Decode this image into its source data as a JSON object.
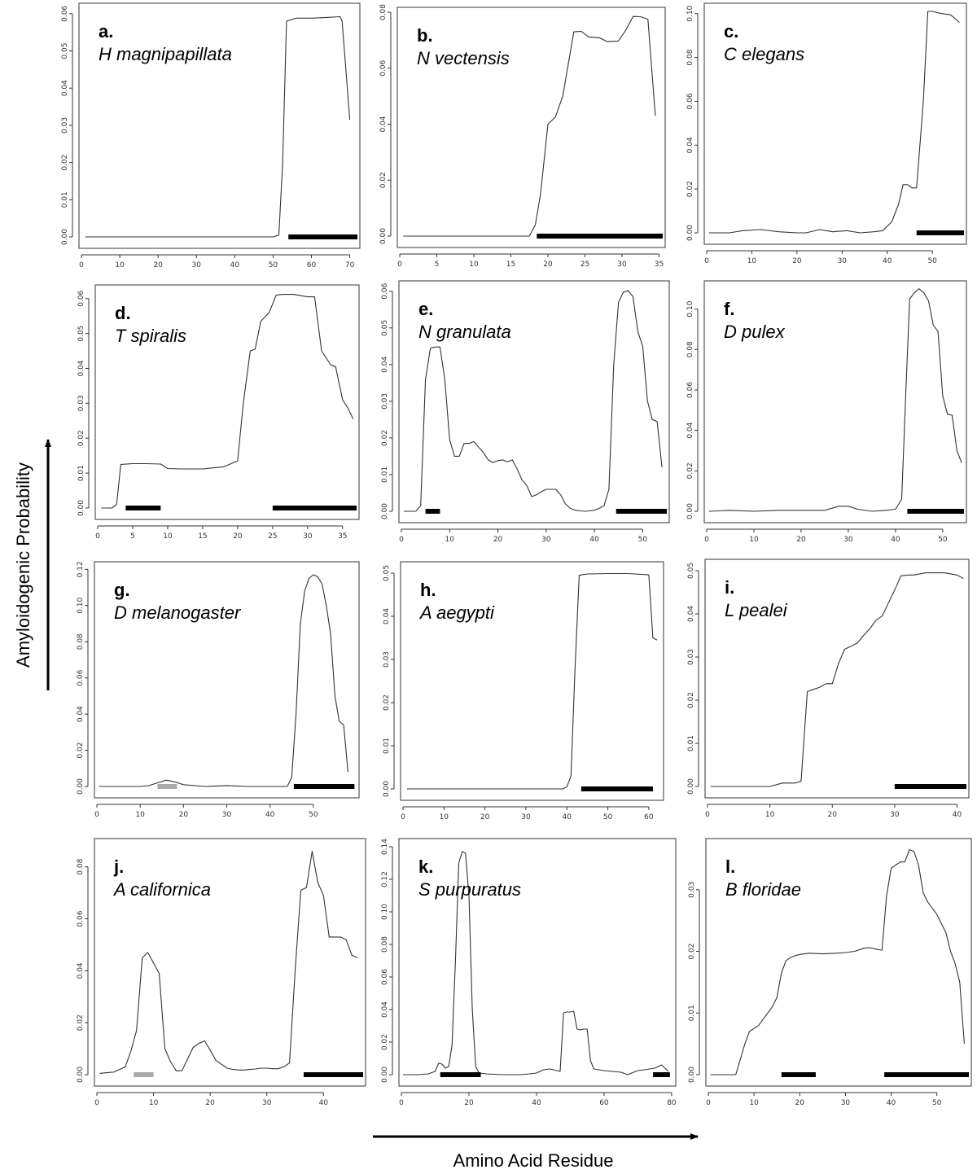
{
  "figure": {
    "y_axis_label": "Amyloidogenic Probability",
    "x_axis_label": "Amino Acid Residue"
  },
  "colors": {
    "line": "#333333",
    "bar_dark": "#000000",
    "bar_light": "#aaaaaa"
  },
  "chart_data": [
    {
      "type": "line",
      "panel": "a.",
      "species": "H magnipapillata",
      "xlim": [
        0,
        72
      ],
      "xticks": [
        0,
        10,
        20,
        30,
        40,
        50,
        60,
        70
      ],
      "ylim": [
        0,
        0.0615
      ],
      "yticks": [
        "0.00",
        "0.01",
        "0.02",
        "0.03",
        "0.04",
        "0.05",
        "0.06"
      ],
      "x": [
        1,
        10,
        20,
        30,
        40,
        50,
        51.5,
        52.5,
        53.5,
        56,
        60,
        64,
        67.5,
        68,
        70
      ],
      "y": [
        0,
        0,
        0,
        0,
        0,
        0,
        0.0005,
        0.02,
        0.058,
        0.0588,
        0.0588,
        0.059,
        0.0592,
        0.058,
        0.0315
      ],
      "segments": [
        {
          "start": 54,
          "end": 72,
          "tone": "dark"
        }
      ]
    },
    {
      "type": "line",
      "panel": "b.",
      "species": "N vectensis",
      "xlim": [
        0,
        35.5
      ],
      "xticks": [
        0,
        5,
        10,
        15,
        20,
        25,
        30,
        35
      ],
      "ylim": [
        0,
        0.08
      ],
      "yticks": [
        "0.00",
        "0.02",
        "0.04",
        "0.06",
        "0.08"
      ],
      "x": [
        0.5,
        5,
        10,
        15,
        17.5,
        18.3,
        19,
        20,
        21,
        22,
        23.5,
        24.5,
        25.5,
        27,
        28,
        29.5,
        30.5,
        31.5,
        32.5,
        33.5,
        34.5
      ],
      "y": [
        0,
        0,
        0,
        0,
        0,
        0.004,
        0.015,
        0.04,
        0.0425,
        0.05,
        0.073,
        0.0732,
        0.0712,
        0.0708,
        0.0695,
        0.0697,
        0.0735,
        0.0785,
        0.0784,
        0.0775,
        0.043
      ],
      "segments": [
        {
          "start": 18.5,
          "end": 35.5,
          "tone": "dark"
        }
      ]
    },
    {
      "type": "line",
      "panel": "c.",
      "species": "C elegans",
      "xlim": [
        0,
        57
      ],
      "xticks": [
        0,
        10,
        20,
        30,
        40,
        50
      ],
      "ylim": [
        0,
        0.1025
      ],
      "yticks": [
        "0.00",
        "0.02",
        "0.04",
        "0.06",
        "0.08",
        "0.10"
      ],
      "x": [
        0.5,
        5,
        8,
        12,
        16,
        20,
        22,
        25,
        28,
        31,
        34,
        37,
        39,
        41,
        42.5,
        43.5,
        44.5,
        45.5,
        46.5,
        48,
        49,
        50,
        52,
        54,
        56
      ],
      "y": [
        0,
        0,
        0.001,
        0.0015,
        0.0005,
        0,
        0,
        0.0015,
        0.0005,
        0.001,
        0,
        0.0005,
        0.001,
        0.005,
        0.013,
        0.022,
        0.022,
        0.0205,
        0.0205,
        0.06,
        0.101,
        0.101,
        0.1,
        0.0995,
        0.096
      ],
      "segments": [
        {
          "start": 46.5,
          "end": 57,
          "tone": "dark"
        }
      ]
    },
    {
      "type": "line",
      "panel": "d.",
      "species": "T spiralis",
      "xlim": [
        0,
        37
      ],
      "xticks": [
        0,
        5,
        10,
        15,
        20,
        25,
        30,
        35
      ],
      "ylim": [
        0,
        0.0625
      ],
      "yticks": [
        "0.00",
        "0.01",
        "0.02",
        "0.03",
        "0.04",
        "0.05",
        "0.06"
      ],
      "x": [
        0.5,
        2,
        2.7,
        3.3,
        5,
        7,
        9,
        10,
        12,
        15,
        18,
        20,
        20.8,
        21.8,
        22.5,
        23.3,
        24.5,
        25.5,
        26.5,
        28,
        30,
        31,
        32,
        33.3,
        34,
        35,
        35.8,
        36.5
      ],
      "y": [
        0,
        0,
        0.001,
        0.0125,
        0.0127,
        0.0127,
        0.0126,
        0.0113,
        0.0112,
        0.0112,
        0.0118,
        0.0135,
        0.03,
        0.045,
        0.0455,
        0.0535,
        0.056,
        0.061,
        0.0612,
        0.0612,
        0.0605,
        0.0605,
        0.045,
        0.041,
        0.0405,
        0.031,
        0.0285,
        0.0255
      ],
      "segments": [
        {
          "start": 4,
          "end": 9,
          "tone": "dark"
        },
        {
          "start": 25,
          "end": 37,
          "tone": "dark"
        }
      ]
    },
    {
      "type": "line",
      "panel": "e.",
      "species": "N granulata",
      "xlim": [
        0,
        55
      ],
      "xticks": [
        0,
        10,
        20,
        30,
        40,
        50
      ],
      "ylim": [
        0,
        0.0615
      ],
      "yticks": [
        "0.00",
        "0.01",
        "0.02",
        "0.03",
        "0.04",
        "0.05",
        "0.06"
      ],
      "x": [
        0.5,
        3,
        4,
        5,
        6,
        7,
        8,
        9,
        10,
        11,
        12,
        13,
        14,
        15,
        16,
        17,
        18,
        19,
        20,
        21,
        22,
        23,
        24,
        25,
        26,
        27,
        28,
        29,
        30,
        31,
        32,
        33,
        34,
        35,
        36,
        37,
        38,
        39,
        40,
        41,
        42,
        43,
        44,
        45,
        46,
        47,
        48,
        49,
        50,
        51,
        52,
        53,
        54
      ],
      "y": [
        0,
        0,
        0.0015,
        0.036,
        0.0445,
        0.0448,
        0.0448,
        0.036,
        0.0195,
        0.015,
        0.015,
        0.0185,
        0.0185,
        0.019,
        0.0175,
        0.016,
        0.014,
        0.0133,
        0.0138,
        0.014,
        0.0135,
        0.014,
        0.0115,
        0.0085,
        0.007,
        0.004,
        0.0045,
        0.0053,
        0.006,
        0.006,
        0.006,
        0.0045,
        0.002,
        0.0008,
        0.0003,
        0.0001,
        0,
        0.0001,
        0.0003,
        0.0008,
        0.0015,
        0.006,
        0.04,
        0.057,
        0.0598,
        0.0602,
        0.0585,
        0.049,
        0.045,
        0.03,
        0.025,
        0.0245,
        0.012
      ],
      "segments": [
        {
          "start": 5,
          "end": 8,
          "tone": "dark"
        },
        {
          "start": 44.5,
          "end": 55,
          "tone": "dark"
        }
      ]
    },
    {
      "type": "line",
      "panel": "f.",
      "species": "D pulex",
      "xlim": [
        0,
        54.5
      ],
      "xticks": [
        0,
        10,
        20,
        30,
        40,
        50
      ],
      "ylim": [
        0,
        0.1115
      ],
      "yticks": [
        "0.00",
        "0.02",
        "0.04",
        "0.06",
        "0.08",
        "0.10"
      ],
      "x": [
        0.5,
        5,
        10,
        15,
        20,
        25,
        28,
        30,
        32,
        35,
        38,
        40,
        41.3,
        42.2,
        43,
        44,
        45,
        46,
        47,
        48,
        49,
        50,
        51,
        52,
        53,
        54
      ],
      "y": [
        0,
        0.0005,
        0,
        0.0005,
        0.0005,
        0.0005,
        0.0025,
        0.0025,
        0.001,
        0,
        0.0005,
        0.001,
        0.006,
        0.06,
        0.105,
        0.108,
        0.11,
        0.108,
        0.104,
        0.092,
        0.089,
        0.057,
        0.048,
        0.0475,
        0.03,
        0.024
      ],
      "segments": [
        {
          "start": 42.5,
          "end": 54.5,
          "tone": "dark"
        }
      ]
    },
    {
      "type": "line",
      "panel": "g.",
      "species": "D melanogaster",
      "xlim": [
        0,
        60
      ],
      "xticks": [
        0,
        10,
        20,
        30,
        40,
        50
      ],
      "ylim": [
        0,
        0.1215
      ],
      "yticks": [
        "0.00",
        "0.02",
        "0.04",
        "0.06",
        "0.08",
        "0.10",
        "0.12"
      ],
      "x": [
        0.5,
        5,
        10,
        12,
        14,
        16,
        18,
        20,
        25,
        30,
        35,
        40,
        44,
        45,
        46,
        47,
        48,
        49,
        50,
        51,
        52,
        53,
        54,
        55,
        56,
        57,
        58
      ],
      "y": [
        0,
        0,
        0,
        0.0005,
        0.002,
        0.0035,
        0.0025,
        0.001,
        0,
        0.0005,
        0,
        0,
        0,
        0.005,
        0.04,
        0.09,
        0.108,
        0.115,
        0.117,
        0.116,
        0.112,
        0.1,
        0.084,
        0.05,
        0.036,
        0.034,
        0.008
      ],
      "segments": [
        {
          "start": 14,
          "end": 18.5,
          "tone": "light"
        },
        {
          "start": 45.5,
          "end": 59.5,
          "tone": "dark"
        }
      ]
    },
    {
      "type": "line",
      "panel": "h.",
      "species": "A aegypti",
      "xlim": [
        0,
        63
      ],
      "xticks": [
        0,
        10,
        20,
        30,
        40,
        50,
        60
      ],
      "ylim": [
        0,
        0.0515
      ],
      "yticks": [
        "0.00",
        "0.01",
        "0.02",
        "0.03",
        "0.04",
        "0.05"
      ],
      "x": [
        1,
        10,
        20,
        30,
        39,
        40,
        41,
        42,
        43,
        45,
        50,
        55,
        60,
        61,
        62
      ],
      "y": [
        0,
        0,
        0,
        0,
        0,
        0.0005,
        0.003,
        0.028,
        0.0495,
        0.0498,
        0.0499,
        0.0499,
        0.0496,
        0.035,
        0.0345
      ],
      "segments": [
        {
          "start": 43.5,
          "end": 61,
          "tone": "dark"
        }
      ]
    },
    {
      "type": "line",
      "panel": "i.",
      "species": "L pealei",
      "xlim": [
        0,
        41.5
      ],
      "xticks": [
        0,
        10,
        20,
        30,
        40
      ],
      "ylim": [
        0,
        0.0515
      ],
      "yticks": [
        "0.00",
        "0.01",
        "0.02",
        "0.03",
        "0.04",
        "0.05"
      ],
      "x": [
        0.5,
        5,
        10,
        12,
        14,
        15,
        16,
        17,
        18,
        19,
        20,
        21,
        22,
        23,
        24,
        25,
        26,
        27,
        28,
        29,
        30,
        31,
        32,
        33,
        35,
        38,
        40,
        41
      ],
      "y": [
        0,
        0,
        0,
        0.0008,
        0.0008,
        0.0012,
        0.022,
        0.0225,
        0.023,
        0.0238,
        0.0238,
        0.0285,
        0.0318,
        0.0325,
        0.0332,
        0.035,
        0.0365,
        0.0385,
        0.0395,
        0.0425,
        0.0455,
        0.0488,
        0.049,
        0.049,
        0.0495,
        0.0495,
        0.049,
        0.0482
      ],
      "segments": [
        {
          "start": 30,
          "end": 41.5,
          "tone": "dark"
        }
      ]
    },
    {
      "type": "line",
      "panel": "j.",
      "species": "A californica",
      "xlim": [
        0,
        47
      ],
      "xticks": [
        0,
        10,
        20,
        30,
        40
      ],
      "ylim": [
        0,
        0.089
      ],
      "yticks": [
        "0.00",
        "0.02",
        "0.04",
        "0.06",
        "0.08"
      ],
      "x": [
        0.5,
        3,
        4,
        5,
        6,
        7,
        8,
        9,
        10,
        11,
        12,
        13,
        14,
        15,
        16,
        17,
        18,
        19,
        20,
        21,
        22,
        23,
        24,
        25,
        26,
        27,
        28,
        29,
        30,
        31,
        32,
        33,
        34,
        35,
        36,
        37,
        38,
        39,
        40,
        41,
        42,
        43,
        44,
        45,
        46
      ],
      "y": [
        0.0005,
        0.001,
        0.002,
        0.003,
        0.009,
        0.017,
        0.045,
        0.047,
        0.043,
        0.039,
        0.01,
        0.005,
        0.0015,
        0.0015,
        0.006,
        0.0105,
        0.012,
        0.013,
        0.0095,
        0.0055,
        0.004,
        0.0025,
        0.002,
        0.0018,
        0.0018,
        0.002,
        0.0022,
        0.0025,
        0.0025,
        0.0023,
        0.0023,
        0.003,
        0.0045,
        0.04,
        0.071,
        0.072,
        0.086,
        0.074,
        0.069,
        0.053,
        0.053,
        0.053,
        0.052,
        0.046,
        0.045
      ],
      "segments": [
        {
          "start": 6.5,
          "end": 10,
          "tone": "light"
        },
        {
          "start": 36.5,
          "end": 47,
          "tone": "dark"
        }
      ]
    },
    {
      "type": "line",
      "panel": "k.",
      "species": "S purpuratus",
      "xlim": [
        0,
        80.5
      ],
      "xticks": [
        0,
        20,
        40,
        60,
        80
      ],
      "ylim": [
        0,
        0.142
      ],
      "yticks": [
        "0.00",
        "0.02",
        "0.04",
        "0.06",
        "0.08",
        "0.10",
        "0.12",
        "0.14"
      ],
      "x": [
        0.5,
        5,
        8,
        10,
        11,
        12,
        13,
        14,
        15,
        16,
        17,
        18,
        19,
        20,
        21,
        22,
        23,
        25,
        30,
        35,
        38,
        40,
        42,
        44,
        46,
        47,
        48,
        49,
        50,
        51,
        52,
        53,
        54,
        55,
        56,
        57,
        60,
        65,
        67,
        70,
        72,
        75,
        77,
        79
      ],
      "y": [
        0,
        0,
        0.0005,
        0.002,
        0.007,
        0.0065,
        0.004,
        0.005,
        0.018,
        0.07,
        0.13,
        0.137,
        0.136,
        0.11,
        0.04,
        0.005,
        0.001,
        0.0005,
        0,
        0,
        0.0005,
        0.001,
        0.003,
        0.0035,
        0.0025,
        0.002,
        0.038,
        0.0385,
        0.0385,
        0.039,
        0.028,
        0.0275,
        0.028,
        0.028,
        0.0085,
        0.0035,
        0.0025,
        0.0015,
        0,
        0.0025,
        0.003,
        0.004,
        0.006,
        0.002
      ],
      "segments": [
        {
          "start": 11.5,
          "end": 23.5,
          "tone": "dark"
        },
        {
          "start": 74.5,
          "end": 79.5,
          "tone": "dark"
        }
      ]
    },
    {
      "type": "line",
      "panel": "l.",
      "species": "B floridae",
      "xlim": [
        0,
        57
      ],
      "xticks": [
        0,
        10,
        20,
        30,
        40,
        50
      ],
      "ylim": [
        0,
        0.0375
      ],
      "yticks": [
        "0.00",
        "0.01",
        "0.02",
        "0.03"
      ],
      "x": [
        0.5,
        4,
        6,
        7,
        8,
        9,
        10,
        11,
        12,
        13,
        14,
        15,
        16,
        17,
        18,
        19,
        20,
        21,
        22,
        25,
        28,
        30,
        32,
        34,
        35,
        36,
        37,
        38,
        39,
        40,
        41,
        42,
        43,
        44,
        45,
        46,
        47,
        48,
        50,
        52,
        53,
        54,
        55,
        56
      ],
      "y": [
        0,
        0,
        0,
        0.0025,
        0.005,
        0.007,
        0.0075,
        0.008,
        0.009,
        0.01,
        0.011,
        0.0125,
        0.0165,
        0.0185,
        0.019,
        0.0193,
        0.0195,
        0.0196,
        0.0197,
        0.0196,
        0.0197,
        0.0198,
        0.02,
        0.0205,
        0.0206,
        0.0205,
        0.0203,
        0.0202,
        0.029,
        0.0335,
        0.034,
        0.0345,
        0.0345,
        0.0365,
        0.0362,
        0.034,
        0.0295,
        0.028,
        0.026,
        0.023,
        0.02,
        0.018,
        0.015,
        0.005
      ],
      "segments": [
        {
          "start": 16,
          "end": 23.5,
          "tone": "dark"
        },
        {
          "start": 38.5,
          "end": 57,
          "tone": "dark"
        }
      ]
    }
  ]
}
